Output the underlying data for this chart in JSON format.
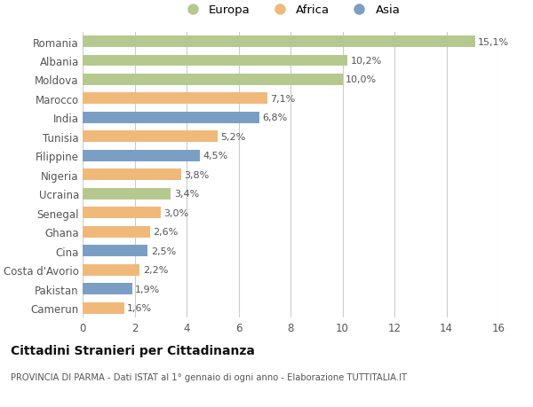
{
  "categories": [
    "Romania",
    "Albania",
    "Moldova",
    "Marocco",
    "India",
    "Tunisia",
    "Filippine",
    "Nigeria",
    "Ucraina",
    "Senegal",
    "Ghana",
    "Cina",
    "Costa d'Avorio",
    "Pakistan",
    "Camerun"
  ],
  "values": [
    15.1,
    10.2,
    10.0,
    7.1,
    6.8,
    5.2,
    4.5,
    3.8,
    3.4,
    3.0,
    2.6,
    2.5,
    2.2,
    1.9,
    1.6
  ],
  "labels": [
    "15,1%",
    "10,2%",
    "10,0%",
    "7,1%",
    "6,8%",
    "5,2%",
    "4,5%",
    "3,8%",
    "3,4%",
    "3,0%",
    "2,6%",
    "2,5%",
    "2,2%",
    "1,9%",
    "1,6%"
  ],
  "colors": [
    "#b5c98e",
    "#b5c98e",
    "#b5c98e",
    "#f0b97a",
    "#7b9fc4",
    "#f0b97a",
    "#7b9fc4",
    "#f0b97a",
    "#b5c98e",
    "#f0b97a",
    "#f0b97a",
    "#7b9fc4",
    "#f0b97a",
    "#7b9fc4",
    "#f0b97a"
  ],
  "continent_labels": [
    "Europa",
    "Africa",
    "Asia"
  ],
  "continent_colors": [
    "#b5c98e",
    "#f0b97a",
    "#7b9fc4"
  ],
  "xlim": [
    0,
    16
  ],
  "xticks": [
    0,
    2,
    4,
    6,
    8,
    10,
    12,
    14,
    16
  ],
  "title": "Cittadini Stranieri per Cittadinanza",
  "subtitle": "PROVINCIA DI PARMA - Dati ISTAT al 1° gennaio di ogni anno - Elaborazione TUTTITALIA.IT",
  "background_color": "#ffffff",
  "bar_height": 0.6
}
